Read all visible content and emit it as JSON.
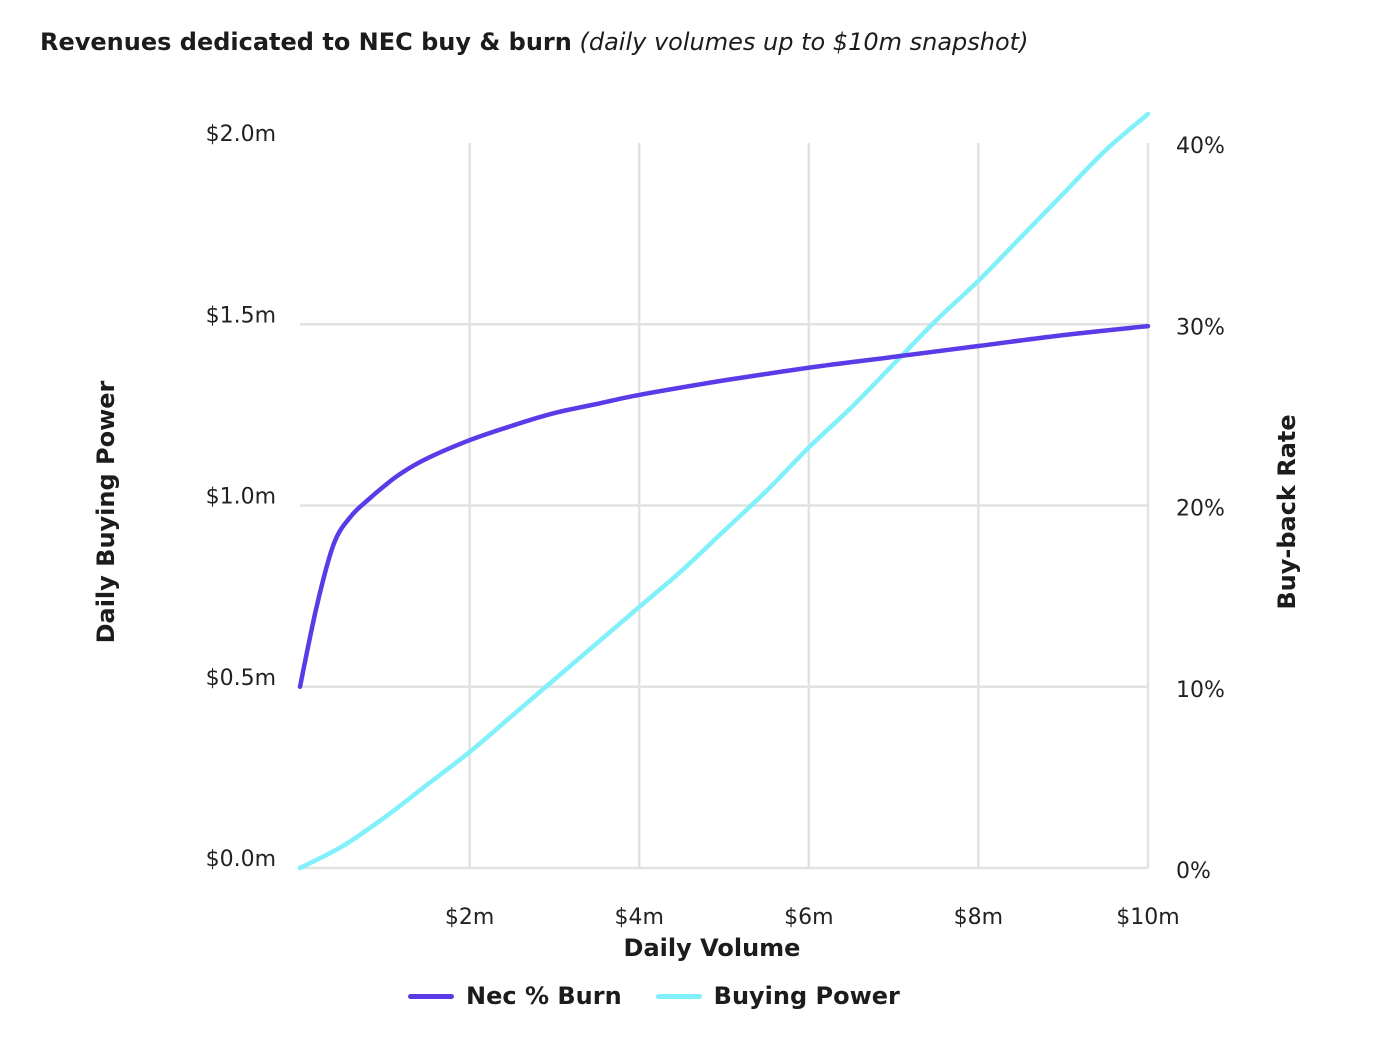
{
  "chart_data": {
    "type": "line",
    "title": "Revenues dedicated to NEC buy & burn",
    "subtitle": "(daily volumes up to $10m snapshot)",
    "xlabel": "Daily Volume",
    "ylabel_left": "Daily Buying Power",
    "ylabel_right": "Buy-back Rate",
    "xlim": [
      0,
      10
    ],
    "ylim_left": [
      0,
      2.0
    ],
    "ylim_right": [
      0,
      40
    ],
    "x_ticks": [
      {
        "value": 2,
        "label": "$2m"
      },
      {
        "value": 4,
        "label": "$4m"
      },
      {
        "value": 6,
        "label": "$6m"
      },
      {
        "value": 8,
        "label": "$8m"
      },
      {
        "value": 10,
        "label": "$10m"
      }
    ],
    "y_left_ticks": [
      {
        "value": 0,
        "label": "$0.0m"
      },
      {
        "value": 0.5,
        "label": "$0.5m"
      },
      {
        "value": 1.0,
        "label": "$1.0m"
      },
      {
        "value": 1.5,
        "label": "$1.5m"
      },
      {
        "value": 2.0,
        "label": "$2.0m"
      }
    ],
    "y_right_ticks": [
      {
        "value": 0,
        "label": "0%"
      },
      {
        "value": 10,
        "label": "10%"
      },
      {
        "value": 20,
        "label": "20%"
      },
      {
        "value": 30,
        "label": "30%"
      },
      {
        "value": 40,
        "label": "40%"
      }
    ],
    "grid": true,
    "legend_position": "bottom-center",
    "series": [
      {
        "name": "Nec % Burn",
        "axis": "right",
        "color": "#5b3be8",
        "x": [
          0,
          0.2,
          0.4,
          0.6,
          0.8,
          1.0,
          1.2,
          1.5,
          2.0,
          2.5,
          3.0,
          3.5,
          4.0,
          5.0,
          6.0,
          7.0,
          8.0,
          9.0,
          10.0
        ],
        "y": [
          10,
          14.5,
          17.9,
          19.4,
          20.3,
          21.1,
          21.8,
          22.6,
          23.6,
          24.4,
          25.1,
          25.6,
          26.1,
          26.9,
          27.6,
          28.2,
          28.8,
          29.4,
          29.9
        ]
      },
      {
        "name": "Buying Power",
        "axis": "left",
        "color": "#80f0fa",
        "x": [
          0,
          0.5,
          1.0,
          1.5,
          2.0,
          2.5,
          3.0,
          3.5,
          4.0,
          4.5,
          5.0,
          5.5,
          6.0,
          6.5,
          7.0,
          7.5,
          8.0,
          8.5,
          9.0,
          9.5,
          10.0
        ],
        "y": [
          0,
          0.06,
          0.14,
          0.23,
          0.32,
          0.42,
          0.52,
          0.62,
          0.72,
          0.82,
          0.93,
          1.04,
          1.16,
          1.27,
          1.39,
          1.51,
          1.62,
          1.74,
          1.86,
          1.98,
          2.08
        ]
      }
    ]
  }
}
